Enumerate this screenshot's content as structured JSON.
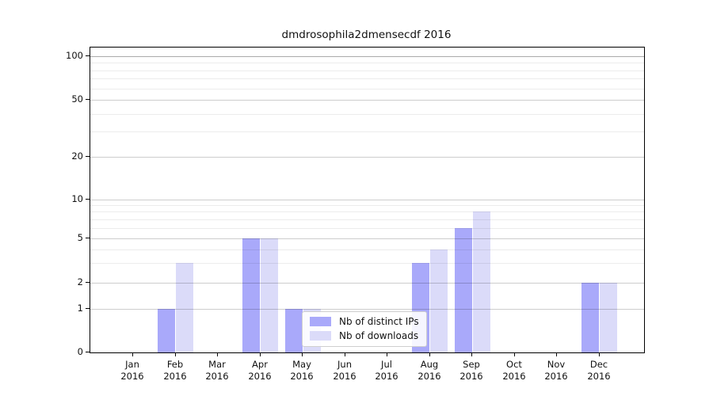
{
  "chart_data": {
    "type": "bar",
    "title": "dmdrosophila2dmensecdf 2016",
    "months": [
      "Jan",
      "Feb",
      "Mar",
      "Apr",
      "May",
      "Jun",
      "Jul",
      "Aug",
      "Sep",
      "Oct",
      "Nov",
      "Dec"
    ],
    "year": "2016",
    "series": [
      {
        "name": "Nb of distinct IPs",
        "color": "#a9a9fa",
        "values": [
          0,
          1,
          0,
          5,
          1,
          0,
          0,
          3,
          6,
          0,
          0,
          2
        ]
      },
      {
        "name": "Nb of downloads",
        "color": "#dbdbf9",
        "values": [
          0,
          3,
          0,
          5,
          1,
          0,
          0,
          4,
          8,
          0,
          0,
          2
        ]
      }
    ],
    "y_major_ticks": [
      0,
      1,
      2,
      5,
      10,
      20,
      50,
      100
    ],
    "y_minor_gridlines": [
      3,
      4,
      6,
      7,
      8,
      9,
      30,
      40,
      60,
      70,
      80,
      90
    ],
    "yscale": "symlog",
    "ylim": [
      0,
      115
    ],
    "xlabel": "",
    "ylabel": "",
    "grid": "horizontal major+minor",
    "legend": {
      "position": "inside-lower-center",
      "labels": [
        "Nb of distinct IPs",
        "Nb of downloads"
      ]
    }
  }
}
